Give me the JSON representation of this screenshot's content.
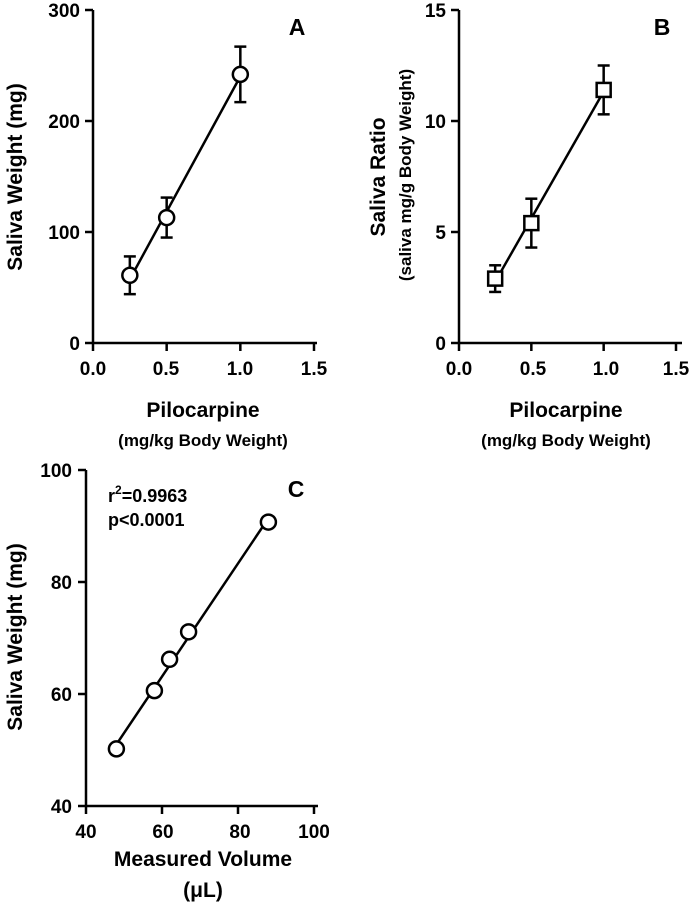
{
  "chart_data": [
    {
      "panel": "A",
      "type": "scatter",
      "marker": "circle",
      "x": [
        0.25,
        0.5,
        1.0
      ],
      "y": [
        61,
        113,
        242
      ],
      "err": [
        17,
        18,
        25
      ],
      "fit_line": true,
      "xlim": [
        0.0,
        1.5
      ],
      "ylim": [
        0,
        300
      ],
      "xticks": [
        0.0,
        0.5,
        1.0,
        1.5
      ],
      "yticks": [
        0,
        100,
        200,
        300
      ],
      "xtick_labels": [
        "0.0",
        "0.5",
        "1.0",
        "1.5"
      ],
      "ytick_labels": [
        "0",
        "100",
        "200",
        "300"
      ],
      "xlabel": "Pilocarpine",
      "xlabel_sub": "(mg/kg Body Weight)",
      "ylabel": "Saliva Weight (mg)"
    },
    {
      "panel": "B",
      "type": "scatter",
      "marker": "square",
      "x": [
        0.25,
        0.5,
        1.0
      ],
      "y": [
        2.9,
        5.4,
        11.4
      ],
      "err": [
        0.6,
        1.1,
        1.1
      ],
      "fit_line": true,
      "xlim": [
        0.0,
        1.5
      ],
      "ylim": [
        0,
        15
      ],
      "xticks": [
        0.0,
        0.5,
        1.0,
        1.5
      ],
      "yticks": [
        0,
        5,
        10,
        15
      ],
      "xtick_labels": [
        "0.0",
        "0.5",
        "1.0",
        "1.5"
      ],
      "ytick_labels": [
        "0",
        "5",
        "10",
        "15"
      ],
      "xlabel": "Pilocarpine",
      "xlabel_sub": "(mg/kg Body Weight)",
      "ylabel": "Saliva Ratio",
      "ylabel_sub": "(saliva mg/g Body Weight)"
    },
    {
      "panel": "C",
      "type": "scatter",
      "marker": "circle",
      "x": [
        48,
        58,
        62,
        67,
        88
      ],
      "y": [
        50.2,
        60.6,
        66.2,
        71.1,
        90.7
      ],
      "fit_line": true,
      "xlim": [
        40,
        100
      ],
      "ylim": [
        40,
        100
      ],
      "xticks": [
        40,
        60,
        80,
        100
      ],
      "yticks": [
        40,
        60,
        80,
        100
      ],
      "xtick_labels": [
        "40",
        "60",
        "80",
        "100"
      ],
      "ytick_labels": [
        "40",
        "60",
        "80",
        "100"
      ],
      "xlabel": "Measured Volume",
      "xlabel_sub": "(μL)",
      "ylabel": "Saliva Weight  (mg)",
      "annotation_r2_base": "r",
      "annotation_r2_sup": "2",
      "annotation_r2_value": "=0.9963",
      "annotation_p": "p<0.0001"
    }
  ]
}
